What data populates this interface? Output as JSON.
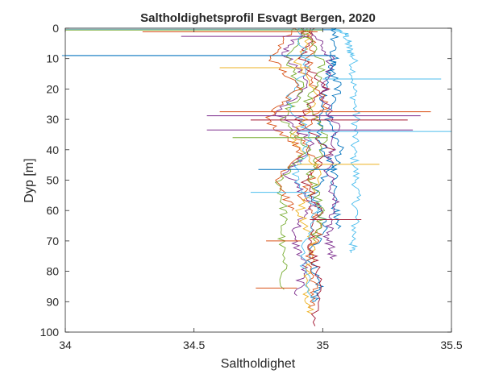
{
  "chart_data": {
    "type": "line",
    "title": "Saltholdighetsprofil Esvagt Bergen, 2020",
    "xlabel": "Saltholdighet",
    "ylabel": "Dyp [m]",
    "xlim": [
      34,
      35.5
    ],
    "ylim": [
      0,
      100
    ],
    "y_reversed": true,
    "grid": false,
    "legend": "none",
    "xticks": [
      34,
      34.5,
      35,
      35.5
    ],
    "xtick_labels": [
      "34",
      "34.5",
      "35",
      "35.5"
    ],
    "yticks": [
      0,
      10,
      20,
      30,
      40,
      50,
      60,
      70,
      80,
      90,
      100
    ],
    "ytick_labels": [
      "0",
      "10",
      "20",
      "30",
      "40",
      "50",
      "60",
      "70",
      "80",
      "90",
      "100"
    ],
    "colors": [
      "#0072BD",
      "#D95319",
      "#EDB120",
      "#7E2F8E",
      "#77AC30",
      "#4DBEEE",
      "#A2142F"
    ],
    "series": [
      {
        "color": "#4DBEEE",
        "x": [
          34.0,
          35.04,
          35.09,
          35.1,
          35.12,
          35.12,
          35.13,
          35.12,
          35.13,
          35.13,
          35.12,
          35.11
        ],
        "y": [
          0,
          0,
          2,
          6,
          10,
          20,
          30,
          40,
          50,
          60,
          70,
          74
        ]
      },
      {
        "color": "#0072BD",
        "x": [
          34.0,
          35.05,
          35.02,
          35.0,
          34.98,
          35.03,
          34.96,
          35.01,
          34.95,
          34.99,
          34.96
        ],
        "y": [
          9,
          9,
          15,
          25,
          35,
          45,
          55,
          65,
          75,
          85,
          90
        ]
      },
      {
        "color": "#D95319",
        "x": [
          34.9,
          34.97,
          34.93,
          35.02,
          34.9,
          34.99,
          34.92,
          35.0,
          34.94,
          34.97,
          34.95
        ],
        "y": [
          0,
          5,
          15,
          25,
          35,
          45,
          55,
          65,
          75,
          85,
          92
        ]
      },
      {
        "color": "#7E2F8E",
        "x": [
          34.93,
          34.85,
          34.95,
          34.82,
          34.97,
          34.86,
          34.96,
          34.88,
          34.93,
          34.9
        ],
        "y": [
          0,
          8,
          18,
          28,
          38,
          48,
          58,
          68,
          78,
          88
        ]
      },
      {
        "color": "#77AC30",
        "x": [
          34.95,
          34.86,
          34.92,
          34.84,
          34.94,
          34.83,
          34.85,
          34.84,
          34.85
        ],
        "y": [
          0,
          10,
          20,
          30,
          40,
          50,
          60,
          70,
          86
        ]
      },
      {
        "color": "#EDB120",
        "x": [
          34.96,
          34.9,
          34.98,
          34.88,
          35.0,
          34.91,
          34.97,
          34.93,
          34.96
        ],
        "y": [
          0,
          12,
          24,
          36,
          48,
          60,
          72,
          84,
          94
        ]
      },
      {
        "color": "#A2142F",
        "x": [
          34.97,
          34.92,
          35.01,
          34.9,
          35.03,
          34.93,
          34.99,
          34.95,
          34.98,
          34.97
        ],
        "y": [
          0,
          10,
          20,
          30,
          40,
          50,
          60,
          70,
          80,
          98
        ]
      },
      {
        "color": "#0072BD",
        "x": [
          35.05,
          35.03,
          35.06,
          35.02,
          35.07,
          35.04,
          35.05,
          35.06
        ],
        "y": [
          0,
          10,
          20,
          30,
          40,
          50,
          60,
          66
        ]
      },
      {
        "color": "#4DBEEE",
        "x": [
          34.9,
          34.94,
          34.86,
          34.96,
          34.89,
          34.97,
          34.92,
          34.96
        ],
        "y": [
          0,
          12,
          24,
          36,
          48,
          60,
          75,
          90
        ]
      },
      {
        "color": "#7E2F8E",
        "x": [
          34.95,
          35.03,
          35.0,
          35.06,
          35.02,
          35.05,
          35.02,
          35.04
        ],
        "y": [
          0,
          10,
          22,
          34,
          46,
          58,
          68,
          76
        ]
      },
      {
        "color": "#D95319",
        "x": [
          34.88,
          34.8,
          34.91,
          34.78,
          34.92,
          34.83,
          34.88
        ],
        "y": [
          0,
          10,
          20,
          30,
          40,
          50,
          60
        ]
      },
      {
        "color": "#77AC30",
        "x": [
          34.92,
          35.0,
          34.94,
          35.02,
          34.95,
          35.0,
          34.97
        ],
        "y": [
          0,
          12,
          24,
          36,
          48,
          60,
          70
        ]
      }
    ],
    "spikes": [
      {
        "color": "#0072BD",
        "depth": 0.5,
        "from": 34.0,
        "to": 35.05
      },
      {
        "color": "#77AC30",
        "depth": 0.6,
        "from": 34.0,
        "to": 35.0
      },
      {
        "color": "#D95319",
        "depth": 1.2,
        "from": 34.3,
        "to": 34.98
      },
      {
        "color": "#7E2F8E",
        "depth": 2.7,
        "from": 34.45,
        "to": 34.95
      },
      {
        "color": "#0072BD",
        "depth": 9.0,
        "from": 34.0,
        "to": 35.05
      },
      {
        "color": "#4DBEEE",
        "depth": 16.7,
        "from": 35.0,
        "to": 35.46
      },
      {
        "color": "#EDB120",
        "depth": 13.0,
        "from": 34.6,
        "to": 34.95
      },
      {
        "color": "#D95319",
        "depth": 27.5,
        "from": 34.6,
        "to": 35.42
      },
      {
        "color": "#7E2F8E",
        "depth": 28.8,
        "from": 34.55,
        "to": 35.38
      },
      {
        "color": "#A2142F",
        "depth": 30.2,
        "from": 34.72,
        "to": 35.33
      },
      {
        "color": "#7E2F8E",
        "depth": 33.5,
        "from": 34.55,
        "to": 35.35
      },
      {
        "color": "#4DBEEE",
        "depth": 34.0,
        "from": 34.9,
        "to": 35.5
      },
      {
        "color": "#77AC30",
        "depth": 36.0,
        "from": 34.65,
        "to": 35.02
      },
      {
        "color": "#EDB120",
        "depth": 44.8,
        "from": 34.9,
        "to": 35.22
      },
      {
        "color": "#0072BD",
        "depth": 46.5,
        "from": 34.75,
        "to": 35.05
      },
      {
        "color": "#4DBEEE",
        "depth": 54.0,
        "from": 34.72,
        "to": 34.95
      },
      {
        "color": "#A2142F",
        "depth": 63.0,
        "from": 34.95,
        "to": 35.15
      },
      {
        "color": "#D95319",
        "depth": 70.0,
        "from": 34.78,
        "to": 34.92
      },
      {
        "color": "#D95319",
        "depth": 85.5,
        "from": 34.74,
        "to": 34.9
      }
    ]
  }
}
